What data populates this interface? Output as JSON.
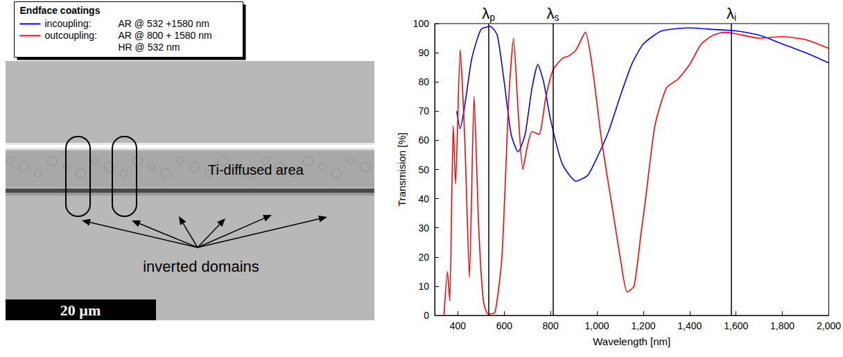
{
  "chart_data": {
    "type": "line",
    "x_label": "Wavelength [nm]",
    "y_label": "Transmision [%]",
    "xlim": [
      300,
      2000
    ],
    "xticks": [
      400,
      600,
      800,
      1000,
      1200,
      1400,
      1600,
      1800,
      2000
    ],
    "ylim": [
      0,
      100
    ],
    "yticks": [
      0,
      10,
      20,
      30,
      40,
      50,
      60,
      70,
      80,
      90,
      100
    ],
    "grid": false,
    "legend": "top-left",
    "legend_title": "Endface coatings",
    "markers": [
      {
        "symbol": "λ",
        "subscript": "p",
        "x": 532
      },
      {
        "symbol": "λ",
        "subscript": "s",
        "x": 810
      },
      {
        "symbol": "λ",
        "subscript": "i",
        "x": 1580
      }
    ],
    "series": [
      {
        "name": "incoupling:",
        "coatings": [
          "AR @ 532 +1580 nm"
        ],
        "color": "#0000ff",
        "x": [
          395,
          410,
          430,
          460,
          500,
          540,
          570,
          600,
          630,
          660,
          690,
          720,
          745,
          770,
          800,
          850,
          910,
          960,
          1000,
          1050,
          1100,
          1150,
          1200,
          1280,
          1400,
          1500,
          1600,
          1700,
          1800,
          1900,
          2000
        ],
        "values": [
          70,
          64,
          72,
          88,
          98,
          99,
          96,
          80,
          62,
          56,
          62,
          78,
          86,
          80,
          67,
          52,
          46,
          48,
          54,
          63,
          75,
          86,
          93,
          97.5,
          98.5,
          98,
          97.5,
          96,
          93,
          90,
          86.5
        ]
      },
      {
        "name": "outcoupling:",
        "coatings": [
          "AR @ 800 + 1580 nm",
          "HR @ 532 nm"
        ],
        "color": "#ff0000",
        "x": [
          340,
          355,
          365,
          380,
          390,
          410,
          430,
          450,
          470,
          490,
          510,
          530,
          560,
          590,
          620,
          640,
          660,
          680,
          700,
          720,
          750,
          780,
          810,
          850,
          880,
          910,
          950,
          980,
          1020,
          1070,
          1100,
          1130,
          1160,
          1190,
          1210,
          1250,
          1300,
          1350,
          1400,
          1450,
          1500,
          1550,
          1600,
          1700,
          1800,
          1900,
          2000
        ],
        "values": [
          0,
          15,
          5,
          65,
          45,
          91,
          60,
          13,
          75,
          30,
          5,
          0.5,
          1,
          20,
          75,
          95,
          70,
          50,
          58,
          63,
          62,
          75,
          84,
          88,
          89,
          91,
          97,
          85,
          60,
          35,
          20,
          8,
          10,
          28,
          40,
          65,
          78,
          81,
          86,
          93,
          96,
          97,
          96.5,
          95,
          95.5,
          94.5,
          91.5
        ]
      }
    ]
  },
  "micrograph": {
    "region_label": "Ti-diffused area",
    "domain_label": "inverted domains",
    "scale_bar": "20 µm"
  }
}
